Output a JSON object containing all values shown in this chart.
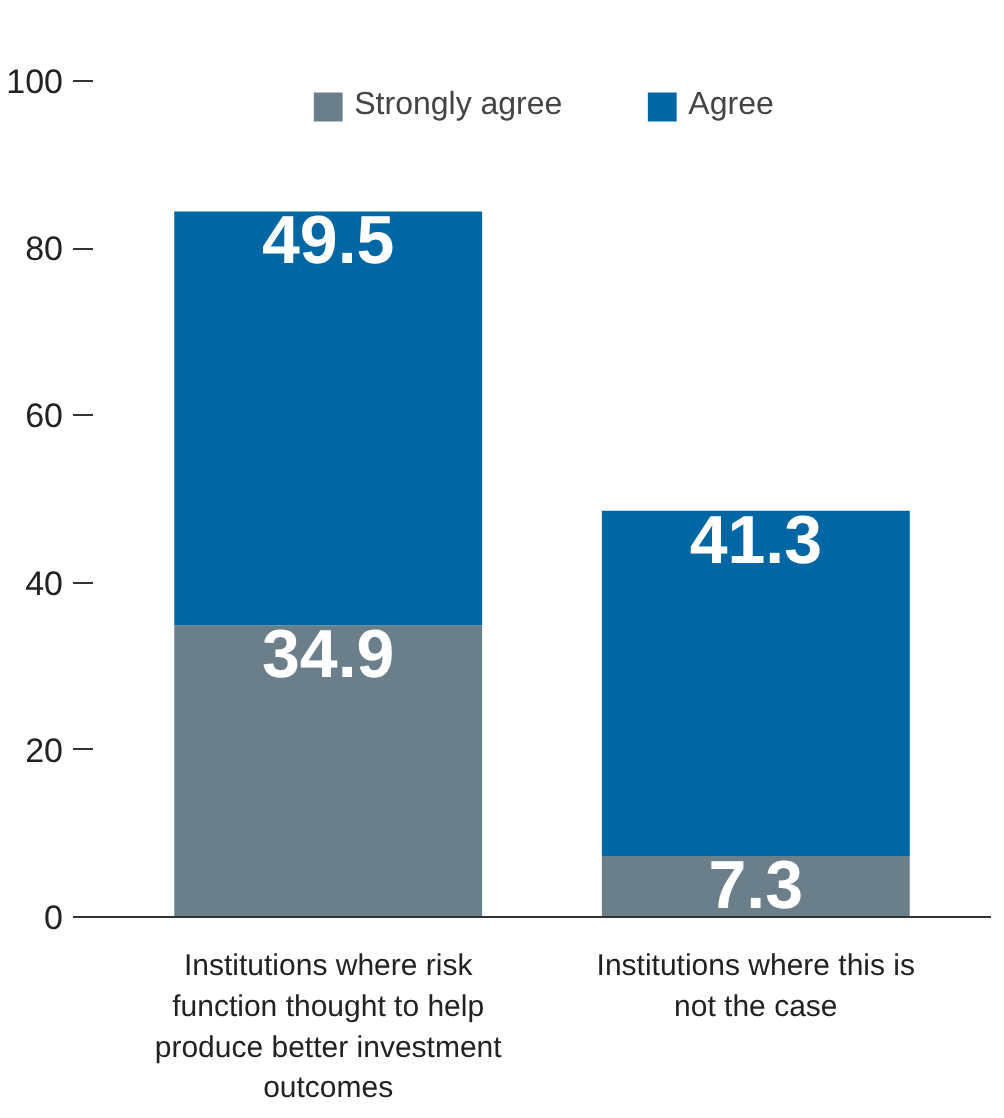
{
  "chart_data": {
    "type": "bar",
    "stacked": true,
    "categories": [
      "Institutions where risk function thought to help produce better investment outcomes",
      "Institutions where this is not the case"
    ],
    "series": [
      {
        "name": "Strongly agree",
        "color": "#6b7f8a",
        "values": [
          34.9,
          7.3
        ]
      },
      {
        "name": "Agree",
        "color": "#0066a4",
        "values": [
          49.5,
          41.3
        ]
      }
    ],
    "ylim": [
      0,
      100
    ],
    "yticks": [
      0,
      20,
      40,
      60,
      80,
      100
    ],
    "data_labels": true,
    "legend": "top",
    "grid": false
  }
}
